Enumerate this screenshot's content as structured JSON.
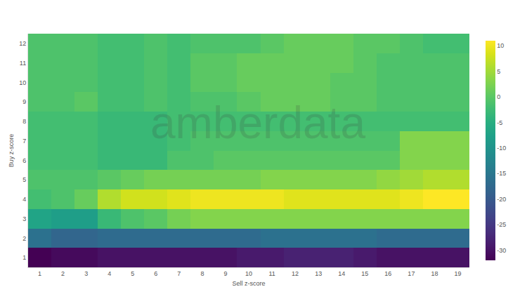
{
  "chart_data": {
    "type": "heatmap",
    "x_label": "Sell z-score",
    "y_label": "Buy z-score",
    "annotations": [
      "amberdata"
    ],
    "x": [
      1,
      2,
      3,
      4,
      5,
      6,
      7,
      8,
      9,
      10,
      11,
      12,
      13,
      14,
      15,
      16,
      17,
      18,
      19
    ],
    "y": [
      1,
      2,
      3,
      4,
      5,
      6,
      7,
      8,
      9,
      10,
      11,
      12
    ],
    "xlim": [
      0.5,
      19.5
    ],
    "ylim": [
      0.5,
      12.5
    ],
    "xticks": [
      1,
      2,
      3,
      4,
      5,
      6,
      7,
      8,
      9,
      10,
      11,
      12,
      13,
      14,
      15,
      16,
      17,
      18,
      19
    ],
    "yticks": [
      1,
      2,
      3,
      4,
      5,
      6,
      7,
      8,
      9,
      10,
      11,
      12
    ],
    "color": "Viridis",
    "z": [
      [
        -32,
        -31,
        -31,
        -30,
        -30,
        -30,
        -30,
        -30,
        -30,
        -29,
        -29,
        -28,
        -28,
        -28,
        -29,
        -30,
        -30,
        -30,
        -30
      ],
      [
        -16,
        -18,
        -18,
        -17,
        -17,
        -17,
        -17,
        -17,
        -17,
        -17,
        -16,
        -16,
        -16,
        -16,
        -16,
        -17,
        -17,
        -17,
        -17
      ],
      [
        -7,
        -8,
        -8,
        -3,
        -1,
        0,
        2,
        3,
        3,
        3,
        3,
        3,
        3,
        3,
        3,
        3,
        3,
        3,
        3
      ],
      [
        -2,
        -1,
        1,
        6,
        8,
        8,
        9,
        10,
        10,
        10,
        10,
        9,
        9,
        9,
        9,
        9,
        10,
        11,
        11
      ],
      [
        -1,
        -1,
        -1,
        0,
        1,
        2,
        2,
        2,
        2,
        2,
        3,
        3,
        3,
        3,
        3,
        4,
        5,
        6,
        6
      ],
      [
        -2,
        -2,
        -2,
        -3,
        -3,
        -3,
        -1,
        -1,
        0,
        0,
        0,
        0,
        0,
        0,
        0,
        0,
        3,
        3,
        3
      ],
      [
        -2,
        -2,
        -2,
        -3,
        -3,
        -3,
        -2,
        -1,
        -1,
        -1,
        -1,
        -1,
        -1,
        -1,
        -1,
        -1,
        3,
        3,
        3
      ],
      [
        -2,
        -2,
        -2,
        -3,
        -3,
        -3,
        -2,
        -2,
        -2,
        -2,
        -2,
        -2,
        -2,
        -2,
        -2,
        -2,
        -2,
        -2,
        -2
      ],
      [
        -1,
        -1,
        0,
        -2,
        -2,
        -1,
        -2,
        -1,
        -1,
        0,
        1,
        1,
        1,
        0,
        0,
        -1,
        -1,
        -1,
        -1
      ],
      [
        -1,
        -1,
        -1,
        -2,
        -2,
        -1,
        -2,
        0,
        0,
        1,
        1,
        1,
        1,
        0,
        0,
        -1,
        -1,
        -1,
        -1
      ],
      [
        -1,
        -1,
        -1,
        -2,
        -2,
        -1,
        -2,
        0,
        0,
        1,
        1,
        1,
        1,
        1,
        0,
        -1,
        -1,
        -1,
        -1
      ],
      [
        -1,
        -1,
        -1,
        -2,
        -2,
        -1,
        -2,
        -1,
        -1,
        -1,
        0,
        1,
        1,
        1,
        0,
        0,
        -1,
        -2,
        -2
      ]
    ],
    "colorbar_range": [
      -32,
      11
    ],
    "colorbar_ticks": [
      -30,
      -25,
      -20,
      -15,
      -10,
      -5,
      0,
      5,
      10
    ]
  }
}
